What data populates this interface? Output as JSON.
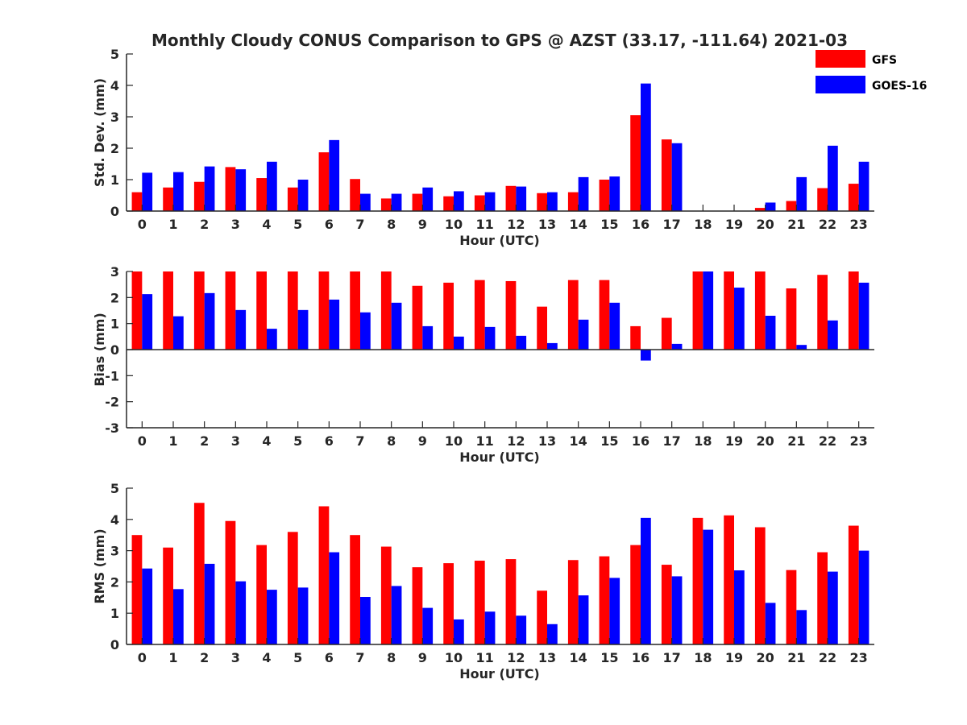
{
  "title": "Monthly Cloudy CONUS Comparison to GPS @ AZST (33.17, -111.64) 2021-03",
  "legend": {
    "placement": "top-right",
    "entries": [
      {
        "label": "GFS",
        "color": "#ff0000"
      },
      {
        "label": "GOES-16",
        "color": "#0000ff"
      }
    ]
  },
  "chart_data": [
    {
      "type": "bar",
      "title": "Monthly Cloudy CONUS Comparison to GPS @ AZST (33.17, -111.64) 2021-03",
      "xlabel": "Hour (UTC)",
      "ylabel": "Std. Dev. (mm)",
      "ylim": [
        0,
        5
      ],
      "yticks": [
        0,
        1,
        2,
        3,
        4,
        5
      ],
      "categories": [
        "0",
        "1",
        "2",
        "3",
        "4",
        "5",
        "6",
        "7",
        "8",
        "9",
        "10",
        "11",
        "12",
        "13",
        "14",
        "15",
        "16",
        "17",
        "18",
        "19",
        "20",
        "21",
        "22",
        "23"
      ],
      "series": [
        {
          "name": "GFS",
          "color": "#ff0000",
          "values": [
            0.6,
            0.75,
            0.93,
            1.4,
            1.05,
            0.75,
            1.87,
            1.02,
            0.4,
            0.55,
            0.47,
            0.5,
            0.8,
            0.57,
            0.6,
            1.0,
            3.05,
            2.28,
            0,
            0,
            0.1,
            0.32,
            0.73,
            0.87
          ]
        },
        {
          "name": "GOES-16",
          "color": "#0000ff",
          "values": [
            1.22,
            1.24,
            1.42,
            1.33,
            1.57,
            1.0,
            2.26,
            0.55,
            0.55,
            0.75,
            0.63,
            0.6,
            0.78,
            0.6,
            1.08,
            1.1,
            4.06,
            2.16,
            0,
            0,
            0.27,
            1.08,
            2.08,
            1.57
          ]
        }
      ]
    },
    {
      "type": "bar",
      "xlabel": "Hour (UTC)",
      "ylabel": "Bias (mm)",
      "ylim": [
        -3,
        3
      ],
      "yticks": [
        -3,
        -2,
        -1,
        0,
        1,
        2,
        3
      ],
      "categories": [
        "0",
        "1",
        "2",
        "3",
        "4",
        "5",
        "6",
        "7",
        "8",
        "9",
        "10",
        "11",
        "12",
        "13",
        "14",
        "15",
        "16",
        "17",
        "18",
        "19",
        "20",
        "21",
        "22",
        "23"
      ],
      "series": [
        {
          "name": "GFS",
          "color": "#ff0000",
          "values": [
            3.0,
            3.0,
            3.0,
            3.0,
            3.0,
            3.0,
            3.0,
            3.0,
            3.0,
            2.45,
            2.57,
            2.67,
            2.63,
            1.65,
            2.67,
            2.67,
            0.9,
            1.22,
            3.0,
            3.0,
            3.0,
            2.35,
            2.87,
            3.0
          ]
        },
        {
          "name": "GOES-16",
          "color": "#0000ff",
          "values": [
            2.13,
            1.28,
            2.17,
            1.52,
            0.8,
            1.52,
            1.92,
            1.43,
            1.8,
            0.9,
            0.5,
            0.87,
            0.53,
            0.25,
            1.15,
            1.8,
            -0.42,
            0.22,
            3.0,
            2.38,
            1.3,
            0.18,
            1.12,
            2.57
          ]
        }
      ]
    },
    {
      "type": "bar",
      "xlabel": "Hour (UTC)",
      "ylabel": "RMS (mm)",
      "ylim": [
        0,
        5
      ],
      "yticks": [
        0,
        1,
        2,
        3,
        4,
        5
      ],
      "categories": [
        "0",
        "1",
        "2",
        "3",
        "4",
        "5",
        "6",
        "7",
        "8",
        "9",
        "10",
        "11",
        "12",
        "13",
        "14",
        "15",
        "16",
        "17",
        "18",
        "19",
        "20",
        "21",
        "22",
        "23"
      ],
      "series": [
        {
          "name": "GFS",
          "color": "#ff0000",
          "values": [
            3.5,
            3.1,
            4.53,
            3.95,
            3.18,
            3.6,
            4.42,
            3.5,
            3.13,
            2.47,
            2.6,
            2.68,
            2.73,
            1.72,
            2.7,
            2.82,
            3.18,
            2.55,
            4.05,
            4.13,
            3.75,
            2.38,
            2.95,
            3.8
          ]
        },
        {
          "name": "GOES-16",
          "color": "#0000ff",
          "values": [
            2.43,
            1.77,
            2.58,
            2.02,
            1.75,
            1.82,
            2.95,
            1.52,
            1.87,
            1.17,
            0.8,
            1.05,
            0.92,
            0.65,
            1.57,
            2.13,
            4.05,
            2.18,
            3.67,
            2.37,
            1.33,
            1.1,
            2.33,
            3.0
          ]
        }
      ]
    }
  ]
}
